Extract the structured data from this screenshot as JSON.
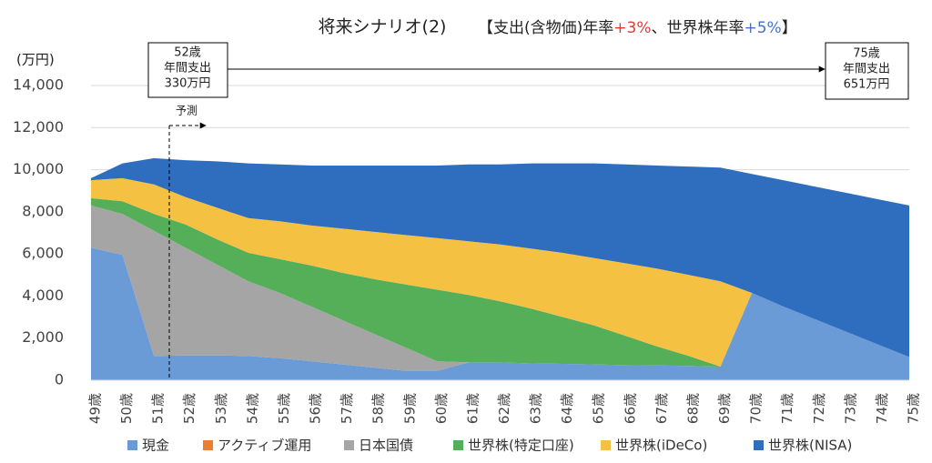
{
  "chart_data": {
    "type": "stacked_area",
    "title": "将来シナリオ(2)",
    "subtitle": [
      {
        "text": "【支出(含物価)年率",
        "color": "#222222"
      },
      {
        "text": "+3%",
        "color": "#e03c31"
      },
      {
        "text": "、世界株年率",
        "color": "#222222"
      },
      {
        "text": "+5%",
        "color": "#4472c4"
      },
      {
        "text": "】",
        "color": "#222222"
      }
    ],
    "y_unit": "(万円)",
    "annotations": {
      "start": [
        "52歳",
        "年間支出",
        "330万円"
      ],
      "end": [
        "75歳",
        "年間支出",
        "651万円"
      ],
      "forecast": "予測"
    },
    "categories": [
      "49歳",
      "50歳",
      "51歳",
      "52歳",
      "53歳",
      "54歳",
      "55歳",
      "56歳",
      "57歳",
      "58歳",
      "59歳",
      "60歳",
      "61歳",
      "62歳",
      "63歳",
      "64歳",
      "65歳",
      "66歳",
      "67歳",
      "68歳",
      "69歳",
      "70歳",
      "71歳",
      "72歳",
      "73歳",
      "74歳",
      "75歳"
    ],
    "series": [
      {
        "name": "現金",
        "color": "#6b9bd6",
        "values": [
          6300,
          5950,
          1150,
          1180,
          1180,
          1150,
          1050,
          900,
          750,
          600,
          450,
          450,
          850,
          850,
          800,
          780,
          750,
          720,
          700,
          680,
          650,
          4150,
          3500,
          2900,
          2300,
          1700,
          1100
        ]
      },
      {
        "name": "アクティブ運用",
        "color": "#ed7d31",
        "values": [
          0,
          0,
          0,
          0,
          0,
          0,
          0,
          0,
          0,
          0,
          0,
          0,
          0,
          0,
          0,
          0,
          0,
          0,
          0,
          0,
          0,
          0,
          0,
          0,
          0,
          0,
          0
        ]
      },
      {
        "name": "日本国債",
        "color": "#a5a5a5",
        "values": [
          2000,
          1950,
          5950,
          5120,
          4320,
          3550,
          3100,
          2600,
          2100,
          1600,
          1100,
          450,
          0,
          0,
          0,
          0,
          0,
          0,
          0,
          0,
          0,
          0,
          0,
          0,
          0,
          0,
          0
        ]
      },
      {
        "name": "世界株(特定口座)",
        "color": "#55ae58",
        "values": [
          350,
          600,
          800,
          1100,
          1200,
          1350,
          1600,
          1950,
          2250,
          2600,
          3000,
          3400,
          3200,
          2900,
          2600,
          2220,
          1850,
          1380,
          900,
          470,
          0,
          0,
          0,
          0,
          0,
          0,
          0
        ]
      },
      {
        "name": "世界株(iDeCo)",
        "color": "#f4c143",
        "values": [
          850,
          1100,
          1400,
          1300,
          1500,
          1650,
          1800,
          1900,
          2100,
          2250,
          2350,
          2450,
          2550,
          2700,
          2850,
          3050,
          3200,
          3450,
          3700,
          3850,
          4050,
          0,
          0,
          0,
          0,
          0,
          0
        ]
      },
      {
        "name": "世界株(NISA)",
        "color": "#2f6ebf",
        "values": [
          100,
          700,
          1250,
          1750,
          2200,
          2600,
          2700,
          2850,
          3000,
          3150,
          3300,
          3450,
          3650,
          3800,
          4050,
          4250,
          4500,
          4700,
          4900,
          5150,
          5400,
          5650,
          6000,
          6300,
          6600,
          6900,
          7200
        ]
      }
    ],
    "ylim": [
      0,
      14000
    ],
    "yticks": [
      0,
      {
        "value": 2000,
        "label": "2,000"
      },
      {
        "value": 4000,
        "label": "4,000"
      },
      {
        "value": 6000,
        "label": "6,000"
      },
      {
        "value": 8000,
        "label": "8,000"
      },
      {
        "value": 10000,
        "label": "10,000"
      },
      {
        "value": 12000,
        "label": "12,000"
      },
      {
        "value": 14000,
        "label": "14,000"
      }
    ],
    "grid": true,
    "legend": "bottom"
  }
}
